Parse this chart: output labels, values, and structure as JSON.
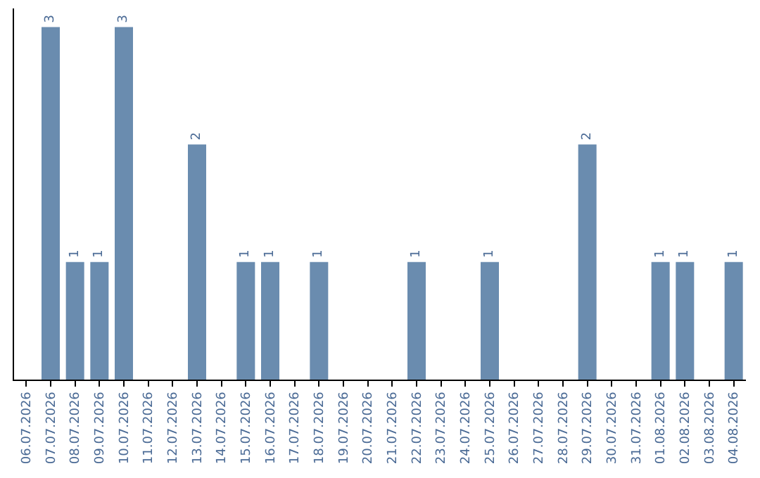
{
  "chart_data": {
    "type": "bar",
    "categories": [
      "06.07.2026",
      "07.07.2026",
      "08.07.2026",
      "09.07.2026",
      "10.07.2026",
      "11.07.2026",
      "12.07.2026",
      "13.07.2026",
      "14.07.2026",
      "15.07.2026",
      "16.07.2026",
      "17.07.2026",
      "18.07.2026",
      "19.07.2026",
      "20.07.2026",
      "21.07.2026",
      "22.07.2026",
      "23.07.2026",
      "24.07.2026",
      "25.07.2026",
      "26.07.2026",
      "27.07.2026",
      "28.07.2026",
      "29.07.2026",
      "30.07.2026",
      "31.07.2026",
      "01.08.2026",
      "02.08.2026",
      "03.08.2026",
      "04.08.2026"
    ],
    "values": [
      0,
      3,
      1,
      1,
      3,
      0,
      0,
      2,
      0,
      1,
      1,
      0,
      1,
      0,
      0,
      0,
      1,
      0,
      0,
      1,
      0,
      0,
      0,
      2,
      0,
      0,
      1,
      1,
      0,
      1
    ],
    "value_labels": [
      null,
      "3",
      "1",
      "1",
      "3",
      null,
      null,
      "2",
      null,
      "1",
      "1",
      null,
      "1",
      null,
      null,
      null,
      "1",
      null,
      null,
      "1",
      null,
      null,
      null,
      "2",
      null,
      null,
      "1",
      "1",
      null,
      "1"
    ],
    "color": "#6a8caf",
    "grid": false,
    "legend": false,
    "tick_labels": "x"
  }
}
